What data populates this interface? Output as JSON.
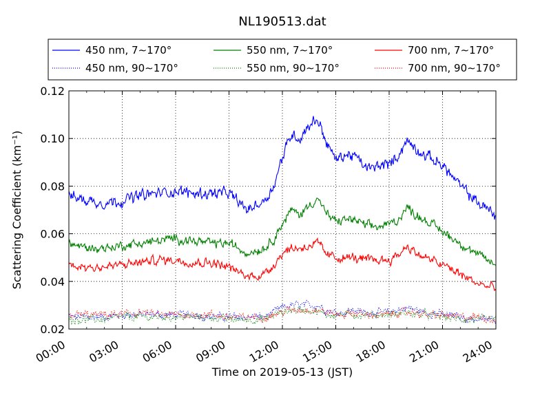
{
  "chart_data": {
    "type": "line",
    "title": "NL190513.dat",
    "xlabel": "Time on 2019-05-13 (JST)",
    "ylabel": "Scattering Coefficient (km⁻¹)",
    "xlim": [
      "00:00",
      "24:00"
    ],
    "ylim": [
      0.02,
      0.12
    ],
    "xticks": [
      "00:00",
      "03:00",
      "06:00",
      "09:00",
      "12:00",
      "15:00",
      "18:00",
      "21:00",
      "24:00"
    ],
    "yticks": [
      "0.02",
      "0.04",
      "0.06",
      "0.08",
      "0.10",
      "0.12"
    ],
    "grid": true,
    "legend_position": "top",
    "x": [
      "00:00",
      "01:00",
      "02:00",
      "03:00",
      "04:00",
      "05:00",
      "06:00",
      "07:00",
      "08:00",
      "09:00",
      "10:00",
      "11:00",
      "11:30",
      "12:00",
      "12:30",
      "13:00",
      "13:30",
      "14:00",
      "14:30",
      "15:00",
      "15:30",
      "16:00",
      "16:30",
      "17:00",
      "17:30",
      "18:00",
      "18:30",
      "19:00",
      "19:30",
      "20:00",
      "21:00",
      "22:00",
      "23:00",
      "24:00"
    ],
    "series": [
      {
        "name": "450 nm, 7∼170°",
        "color": "#0000ff",
        "style": "solid",
        "values": [
          0.076,
          0.074,
          0.073,
          0.074,
          0.076,
          0.077,
          0.078,
          0.077,
          0.077,
          0.077,
          0.07,
          0.074,
          0.08,
          0.092,
          0.102,
          0.1,
          0.106,
          0.108,
          0.098,
          0.091,
          0.093,
          0.093,
          0.089,
          0.087,
          0.089,
          0.089,
          0.093,
          0.099,
          0.096,
          0.093,
          0.089,
          0.08,
          0.073,
          0.068
        ]
      },
      {
        "name": "550 nm, 7∼170°",
        "color": "#008000",
        "style": "solid",
        "values": [
          0.056,
          0.054,
          0.054,
          0.055,
          0.056,
          0.057,
          0.058,
          0.057,
          0.056,
          0.056,
          0.052,
          0.054,
          0.058,
          0.064,
          0.07,
          0.068,
          0.072,
          0.075,
          0.068,
          0.065,
          0.066,
          0.066,
          0.064,
          0.063,
          0.063,
          0.064,
          0.066,
          0.071,
          0.068,
          0.066,
          0.061,
          0.056,
          0.051,
          0.047
        ]
      },
      {
        "name": "700 nm, 7∼170°",
        "color": "#ff0000",
        "style": "solid",
        "values": [
          0.047,
          0.046,
          0.046,
          0.047,
          0.048,
          0.049,
          0.049,
          0.048,
          0.048,
          0.046,
          0.042,
          0.043,
          0.047,
          0.052,
          0.054,
          0.054,
          0.055,
          0.056,
          0.051,
          0.05,
          0.05,
          0.05,
          0.049,
          0.049,
          0.049,
          0.049,
          0.051,
          0.055,
          0.052,
          0.05,
          0.047,
          0.043,
          0.039,
          0.037
        ]
      },
      {
        "name": "450 nm, 90∼170°",
        "color": "#0000ff",
        "style": "dotted",
        "values": [
          0.025,
          0.025,
          0.025,
          0.026,
          0.026,
          0.026,
          0.026,
          0.026,
          0.025,
          0.025,
          0.025,
          0.025,
          0.027,
          0.029,
          0.03,
          0.03,
          0.03,
          0.03,
          0.028,
          0.027,
          0.027,
          0.028,
          0.027,
          0.027,
          0.027,
          0.027,
          0.028,
          0.029,
          0.028,
          0.027,
          0.026,
          0.025,
          0.024,
          0.024
        ]
      },
      {
        "name": "550 nm, 90∼170°",
        "color": "#008000",
        "style": "dotted",
        "values": [
          0.024,
          0.024,
          0.024,
          0.025,
          0.025,
          0.025,
          0.025,
          0.025,
          0.025,
          0.024,
          0.024,
          0.024,
          0.026,
          0.027,
          0.028,
          0.028,
          0.028,
          0.027,
          0.026,
          0.026,
          0.026,
          0.026,
          0.026,
          0.026,
          0.026,
          0.026,
          0.026,
          0.027,
          0.026,
          0.026,
          0.025,
          0.024,
          0.024,
          0.024
        ]
      },
      {
        "name": "700 nm, 90∼170°",
        "color": "#ff0000",
        "style": "dotted",
        "values": [
          0.026,
          0.026,
          0.026,
          0.026,
          0.027,
          0.026,
          0.026,
          0.026,
          0.026,
          0.025,
          0.025,
          0.025,
          0.026,
          0.027,
          0.028,
          0.028,
          0.028,
          0.028,
          0.027,
          0.026,
          0.026,
          0.027,
          0.026,
          0.026,
          0.026,
          0.026,
          0.027,
          0.027,
          0.027,
          0.026,
          0.026,
          0.025,
          0.025,
          0.024
        ]
      }
    ]
  }
}
